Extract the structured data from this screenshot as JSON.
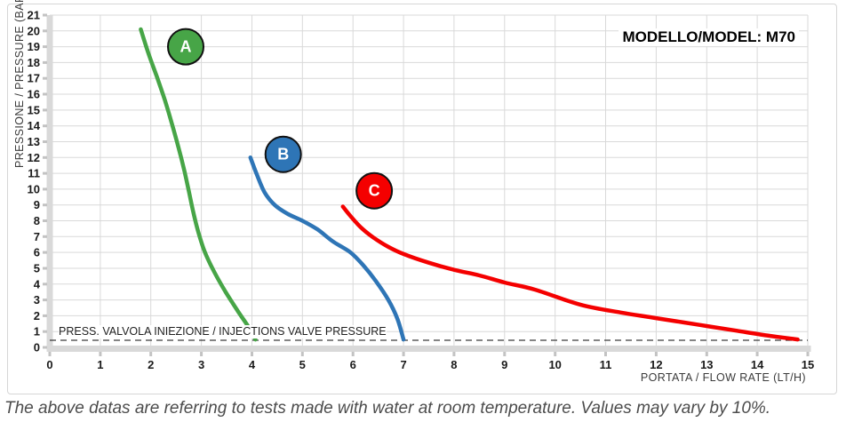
{
  "caption": "The above datas are referring to tests made with water at room temperature. Values may vary by 10%.",
  "chart_data": {
    "type": "line",
    "title": "MODELLO/MODEL: M70",
    "xlabel": "PORTATA / FLOW RATE (LT/H)",
    "ylabel": "PRESSIONE / PRESSURE (BAR)",
    "xlim": [
      0,
      15
    ],
    "ylim": [
      0,
      21
    ],
    "x_ticks": [
      0,
      1,
      2,
      3,
      4,
      5,
      6,
      7,
      8,
      9,
      10,
      11,
      12,
      13,
      14,
      15
    ],
    "y_ticks": [
      0,
      1,
      2,
      3,
      4,
      5,
      6,
      7,
      8,
      9,
      10,
      11,
      12,
      13,
      14,
      15,
      16,
      17,
      18,
      19,
      20,
      21
    ],
    "grid": true,
    "legend_position": "none",
    "annotations": {
      "valve_line": {
        "y": 0.45,
        "style": "dashed",
        "label": "PRESS. VALVOLA INIEZIONE / INJECTIONS VALVE PRESSURE"
      }
    },
    "series": [
      {
        "name": "A",
        "color": "#47a547",
        "label_pos": {
          "x": 2.69,
          "y": 19.0
        },
        "points": [
          [
            1.8,
            20.1
          ],
          [
            1.95,
            18.6
          ],
          [
            2.12,
            17.1
          ],
          [
            2.28,
            15.6
          ],
          [
            2.42,
            14.1
          ],
          [
            2.55,
            12.6
          ],
          [
            2.66,
            11.2
          ],
          [
            2.75,
            9.9
          ],
          [
            2.83,
            8.7
          ],
          [
            2.93,
            7.4
          ],
          [
            3.06,
            6.1
          ],
          [
            3.25,
            4.8
          ],
          [
            3.48,
            3.5
          ],
          [
            3.72,
            2.3
          ],
          [
            3.93,
            1.3
          ],
          [
            4.07,
            0.5
          ]
        ]
      },
      {
        "name": "B",
        "color": "#2e75b6",
        "label_pos": {
          "x": 4.62,
          "y": 12.2
        },
        "points": [
          [
            3.97,
            12.0
          ],
          [
            4.1,
            10.9
          ],
          [
            4.25,
            9.8
          ],
          [
            4.45,
            9.0
          ],
          [
            4.7,
            8.45
          ],
          [
            5.0,
            8.0
          ],
          [
            5.3,
            7.45
          ],
          [
            5.6,
            6.7
          ],
          [
            5.95,
            6.0
          ],
          [
            6.2,
            5.2
          ],
          [
            6.45,
            4.2
          ],
          [
            6.7,
            3.0
          ],
          [
            6.88,
            1.8
          ],
          [
            7.0,
            0.5
          ]
        ]
      },
      {
        "name": "C",
        "color": "#f40000",
        "label_pos": {
          "x": 6.42,
          "y": 9.9
        },
        "points": [
          [
            5.8,
            8.9
          ],
          [
            5.95,
            8.3
          ],
          [
            6.15,
            7.6
          ],
          [
            6.4,
            6.95
          ],
          [
            6.7,
            6.35
          ],
          [
            7.0,
            5.9
          ],
          [
            7.5,
            5.35
          ],
          [
            8.0,
            4.9
          ],
          [
            8.5,
            4.55
          ],
          [
            9.0,
            4.1
          ],
          [
            9.6,
            3.65
          ],
          [
            10.5,
            2.7
          ],
          [
            11.3,
            2.2
          ],
          [
            12.0,
            1.85
          ],
          [
            12.8,
            1.45
          ],
          [
            13.6,
            1.05
          ],
          [
            14.2,
            0.75
          ],
          [
            14.8,
            0.5
          ]
        ]
      }
    ],
    "colors": {
      "grid": "#d9d9d9",
      "axis_band": "#d9d9d9",
      "axis_tick": "#c3c3c3",
      "dashed_line": "#3a3a3a",
      "tick_label": "#1a1a1a"
    }
  }
}
